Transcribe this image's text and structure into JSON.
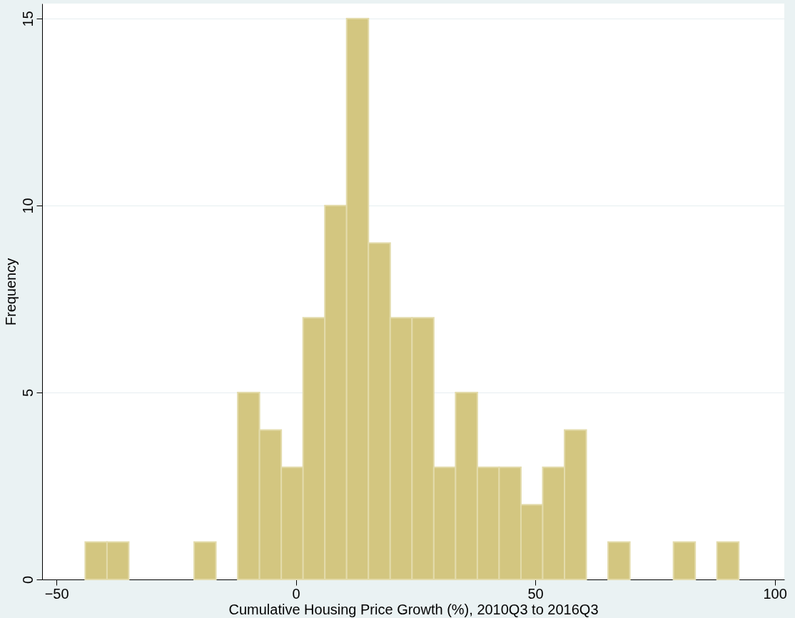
{
  "chart_data": {
    "type": "histogram",
    "xlabel": "Cumulative Housing Price Growth (%), 2010Q3 to 2016Q3",
    "ylabel": "Frequency",
    "bins": [
      -44,
      -39.45,
      -34.9,
      -30.35,
      -25.8,
      -21.25,
      -16.7,
      -12.15,
      -7.6,
      -3.05,
      1.5,
      6.05,
      10.6,
      15.15,
      19.7,
      24.25,
      28.8,
      33.35,
      37.9,
      42.45,
      47,
      51.55,
      56.1,
      60.65,
      65.2,
      69.75,
      74.3,
      78.85,
      83.4,
      87.95,
      92.5
    ],
    "values": [
      1,
      1,
      0,
      0,
      0,
      1,
      0,
      5,
      4,
      3,
      7,
      10,
      15,
      9,
      7,
      7,
      3,
      5,
      3,
      3,
      2,
      3,
      4,
      0,
      1,
      0,
      0,
      1,
      0,
      1
    ],
    "color": "#d3c680",
    "xlim": [
      -53,
      102
    ],
    "xticks": [
      -50,
      0,
      50,
      100
    ],
    "ylim": [
      0,
      15.4
    ],
    "yticks": [
      0,
      5,
      10,
      15
    ],
    "grid": "y"
  }
}
